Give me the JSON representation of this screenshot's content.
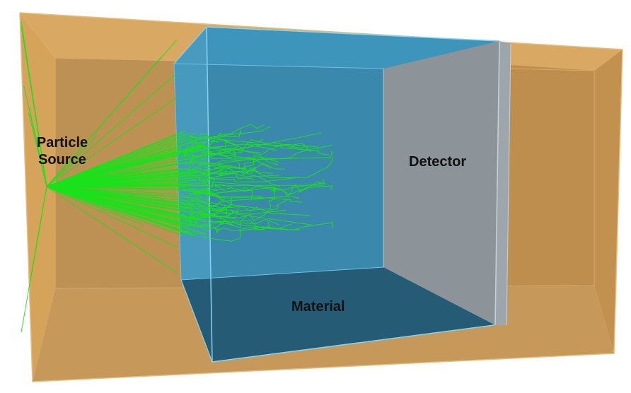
{
  "labels": {
    "source_line1": "Particle",
    "source_line2": "Source",
    "detector": "Detector",
    "material": "Material"
  },
  "colors": {
    "world_fill": "#c9994f",
    "world_edge": "#e3b877",
    "material_fill": "#3f8fb3",
    "material_edge": "#7fd0ec",
    "detector_fill": "#9aa1a8",
    "track": "#19e21a"
  }
}
